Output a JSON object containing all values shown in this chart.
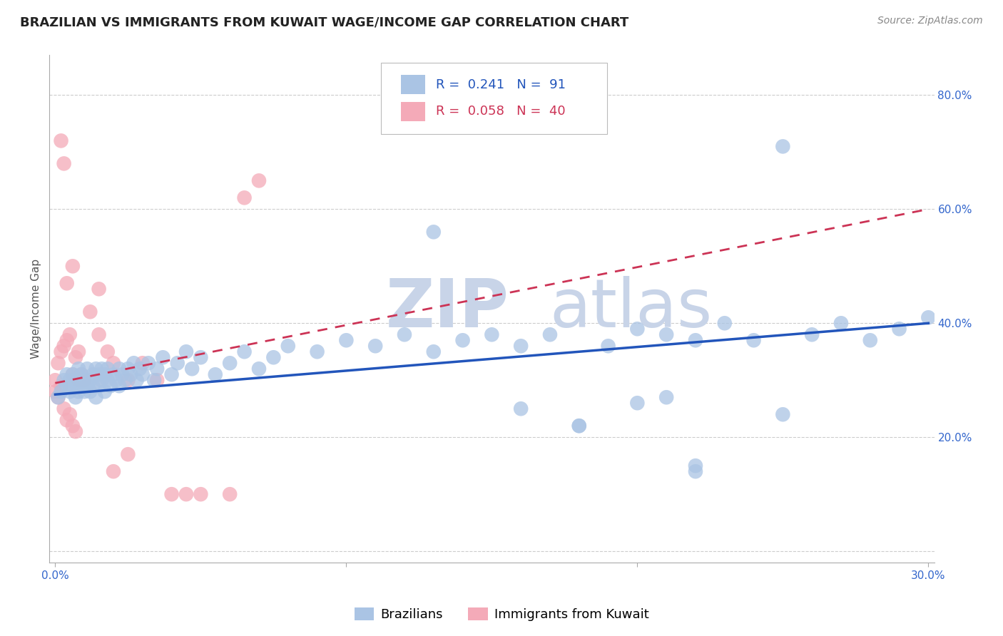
{
  "title": "BRAZILIAN VS IMMIGRANTS FROM KUWAIT WAGE/INCOME GAP CORRELATION CHART",
  "source": "Source: ZipAtlas.com",
  "ylabel": "Wage/Income Gap",
  "blue_R": 0.241,
  "blue_N": 91,
  "pink_R": 0.058,
  "pink_N": 40,
  "blue_label": "Brazilians",
  "pink_label": "Immigrants from Kuwait",
  "blue_color": "#aac4e4",
  "pink_color": "#f4aab8",
  "blue_line_color": "#2255bb",
  "pink_line_color": "#cc3355",
  "xmin": 0.0,
  "xmax": 0.3,
  "ymin": -0.02,
  "ymax": 0.87,
  "background_color": "#ffffff",
  "grid_color": "#cccccc",
  "watermark_color": "#c8d4e8",
  "title_fontsize": 13,
  "axis_fontsize": 11,
  "legend_fontsize": 13,
  "tick_fontsize": 11,
  "blue_x": [
    0.001,
    0.002,
    0.003,
    0.004,
    0.004,
    0.005,
    0.005,
    0.006,
    0.006,
    0.007,
    0.007,
    0.008,
    0.008,
    0.009,
    0.009,
    0.01,
    0.01,
    0.011,
    0.011,
    0.012,
    0.012,
    0.013,
    0.013,
    0.014,
    0.014,
    0.015,
    0.015,
    0.016,
    0.016,
    0.017,
    0.017,
    0.018,
    0.018,
    0.019,
    0.02,
    0.021,
    0.022,
    0.022,
    0.023,
    0.024,
    0.025,
    0.026,
    0.027,
    0.028,
    0.029,
    0.03,
    0.032,
    0.034,
    0.035,
    0.037,
    0.04,
    0.042,
    0.045,
    0.047,
    0.05,
    0.055,
    0.06,
    0.065,
    0.07,
    0.075,
    0.08,
    0.09,
    0.1,
    0.11,
    0.12,
    0.13,
    0.14,
    0.15,
    0.16,
    0.17,
    0.18,
    0.19,
    0.2,
    0.21,
    0.22,
    0.23,
    0.24,
    0.25,
    0.26,
    0.27,
    0.28,
    0.29,
    0.3,
    0.25,
    0.22,
    0.22,
    0.13,
    0.16,
    0.18,
    0.2,
    0.21
  ],
  "blue_y": [
    0.27,
    0.28,
    0.3,
    0.29,
    0.31,
    0.28,
    0.3,
    0.29,
    0.31,
    0.27,
    0.3,
    0.28,
    0.32,
    0.29,
    0.31,
    0.28,
    0.3,
    0.29,
    0.32,
    0.3,
    0.28,
    0.31,
    0.29,
    0.32,
    0.27,
    0.31,
    0.29,
    0.3,
    0.32,
    0.28,
    0.31,
    0.3,
    0.32,
    0.29,
    0.31,
    0.3,
    0.32,
    0.29,
    0.31,
    0.3,
    0.32,
    0.31,
    0.33,
    0.3,
    0.32,
    0.31,
    0.33,
    0.3,
    0.32,
    0.34,
    0.31,
    0.33,
    0.35,
    0.32,
    0.34,
    0.31,
    0.33,
    0.35,
    0.32,
    0.34,
    0.36,
    0.35,
    0.37,
    0.36,
    0.38,
    0.35,
    0.37,
    0.38,
    0.36,
    0.38,
    0.22,
    0.36,
    0.39,
    0.38,
    0.14,
    0.4,
    0.37,
    0.71,
    0.38,
    0.4,
    0.37,
    0.39,
    0.41,
    0.24,
    0.15,
    0.37,
    0.56,
    0.25,
    0.22,
    0.26,
    0.27
  ],
  "pink_x": [
    0.0,
    0.0,
    0.001,
    0.001,
    0.002,
    0.002,
    0.003,
    0.003,
    0.004,
    0.004,
    0.005,
    0.005,
    0.006,
    0.006,
    0.007,
    0.007,
    0.008,
    0.009,
    0.01,
    0.012,
    0.015,
    0.018,
    0.02,
    0.025,
    0.03,
    0.035,
    0.04,
    0.045,
    0.05,
    0.06,
    0.065,
    0.07,
    0.015,
    0.02,
    0.025,
    0.008,
    0.004,
    0.006,
    0.003,
    0.002
  ],
  "pink_y": [
    0.28,
    0.3,
    0.27,
    0.33,
    0.29,
    0.35,
    0.25,
    0.36,
    0.23,
    0.37,
    0.24,
    0.38,
    0.22,
    0.31,
    0.21,
    0.34,
    0.35,
    0.31,
    0.3,
    0.42,
    0.38,
    0.35,
    0.14,
    0.17,
    0.33,
    0.3,
    0.1,
    0.1,
    0.1,
    0.1,
    0.62,
    0.65,
    0.46,
    0.33,
    0.3,
    0.3,
    0.47,
    0.5,
    0.68,
    0.72
  ]
}
